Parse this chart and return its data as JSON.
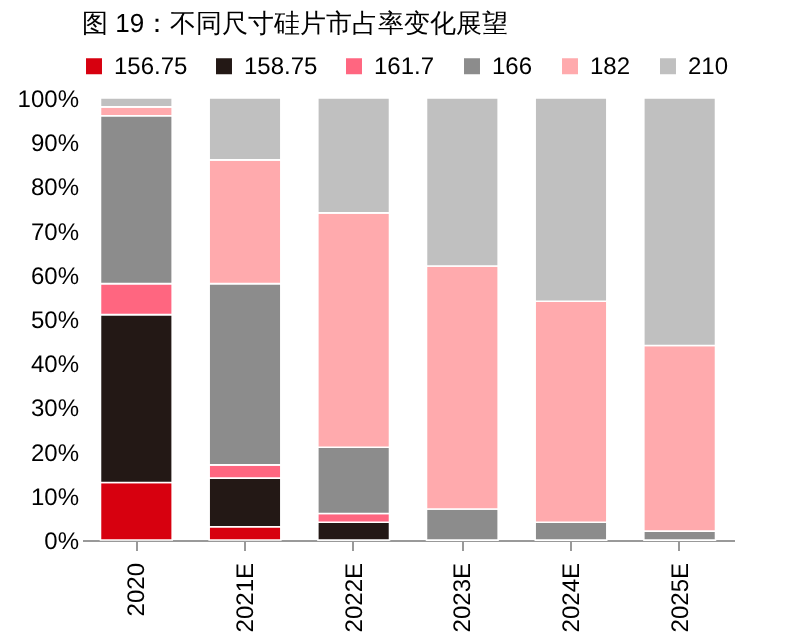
{
  "chart_data": {
    "type": "bar",
    "stacked": true,
    "title": "图 19：不同尺寸硅片市占率变化展望",
    "categories": [
      "2020",
      "2021E",
      "2022E",
      "2023E",
      "2024E",
      "2025E"
    ],
    "series": [
      {
        "name": "156.75",
        "color": "#d7000f",
        "values": [
          13,
          3,
          0,
          0,
          0,
          0
        ]
      },
      {
        "name": "158.75",
        "color": "#231815",
        "values": [
          38,
          11,
          4,
          0,
          0,
          0
        ]
      },
      {
        "name": "161.7",
        "color": "#ff6680",
        "values": [
          7,
          3,
          2,
          0,
          0,
          0
        ]
      },
      {
        "name": "166",
        "color": "#8c8c8c",
        "values": [
          38,
          41,
          15,
          7,
          4,
          2
        ]
      },
      {
        "name": "182",
        "color": "#ffaaad",
        "values": [
          2,
          28,
          53,
          55,
          50,
          42
        ]
      },
      {
        "name": "210",
        "color": "#c0c0c0",
        "values": [
          2,
          14,
          26,
          38,
          46,
          56
        ]
      }
    ],
    "ylim": [
      0,
      100
    ],
    "yticks": [
      {
        "value": 0,
        "label": "0%"
      },
      {
        "value": 10,
        "label": "10%"
      },
      {
        "value": 20,
        "label": "20%"
      },
      {
        "value": 30,
        "label": "30%"
      },
      {
        "value": 40,
        "label": "40%"
      },
      {
        "value": 50,
        "label": "50%"
      },
      {
        "value": 60,
        "label": "60%"
      },
      {
        "value": 70,
        "label": "70%"
      },
      {
        "value": 80,
        "label": "80%"
      },
      {
        "value": 90,
        "label": "90%"
      },
      {
        "value": 100,
        "label": "100%"
      }
    ],
    "grid": false,
    "legend": "top"
  }
}
